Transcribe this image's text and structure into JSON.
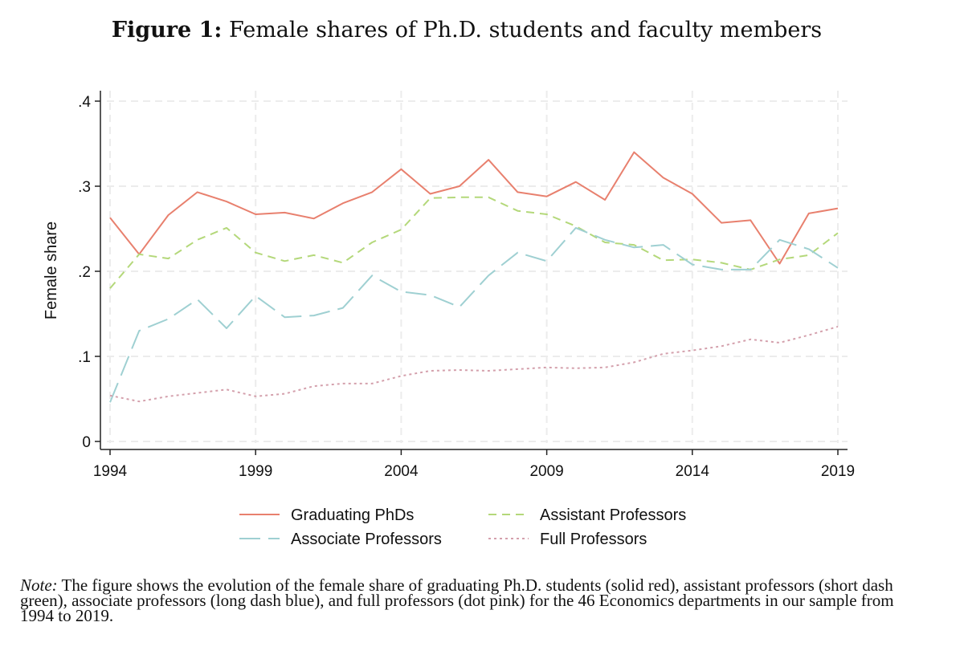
{
  "figure": {
    "title_lead": "Figure 1:",
    "title_rest": "Female shares of Ph.D. students and faculty members"
  },
  "note": {
    "label": "Note:",
    "text": "The figure shows the evolution of the female share of graduating Ph.D. students (solid red), assistant professors (short dash green), associate professors (long dash blue), and full professors (dot pink) for the 46 Economics departments in our sample from 1994 to 2019."
  },
  "chart_data": {
    "type": "line",
    "title": "",
    "xlabel": "",
    "ylabel": "Female share",
    "xlim": [
      1994,
      2019
    ],
    "ylim": [
      0,
      0.4
    ],
    "x_ticks": [
      1994,
      1999,
      2004,
      2009,
      2014,
      2019
    ],
    "y_ticks": [
      0,
      0.1,
      0.2,
      0.3,
      0.4
    ],
    "y_tick_labels": [
      "0",
      ".1",
      ".2",
      ".3",
      ".4"
    ],
    "grid": true,
    "legend_position": "bottom",
    "x": [
      1994,
      1995,
      1996,
      1997,
      1998,
      1999,
      2000,
      2001,
      2002,
      2003,
      2004,
      2005,
      2006,
      2007,
      2008,
      2009,
      2010,
      2011,
      2012,
      2013,
      2014,
      2015,
      2016,
      2017,
      2018,
      2019
    ],
    "series": [
      {
        "name": "Graduating PhDs",
        "color": "#e8806e",
        "style": "solid",
        "values": [
          0.263,
          0.22,
          0.266,
          0.293,
          0.282,
          0.267,
          0.269,
          0.262,
          0.28,
          0.293,
          0.32,
          0.291,
          0.3,
          0.331,
          0.293,
          0.288,
          0.305,
          0.284,
          0.34,
          0.31,
          0.291,
          0.257,
          0.26,
          0.209,
          0.268,
          0.274
        ]
      },
      {
        "name": "Assistant Professors",
        "color": "#b4d87a",
        "style": "short-dash",
        "values": [
          0.18,
          0.22,
          0.215,
          0.237,
          0.251,
          0.222,
          0.212,
          0.219,
          0.21,
          0.234,
          0.249,
          0.286,
          0.287,
          0.287,
          0.271,
          0.267,
          0.253,
          0.234,
          0.231,
          0.213,
          0.214,
          0.21,
          0.202,
          0.214,
          0.219,
          0.245
        ]
      },
      {
        "name": "Associate Professors",
        "color": "#9fd0d2",
        "style": "long-dash",
        "values": [
          0.046,
          0.13,
          0.144,
          0.167,
          0.133,
          0.171,
          0.146,
          0.148,
          0.157,
          0.195,
          0.176,
          0.172,
          0.158,
          0.195,
          0.222,
          0.212,
          0.251,
          0.237,
          0.228,
          0.231,
          0.208,
          0.202,
          0.202,
          0.237,
          0.226,
          0.204
        ]
      },
      {
        "name": "Full Professors",
        "color": "#d4a0ac",
        "style": "dot",
        "values": [
          0.054,
          0.047,
          0.053,
          0.057,
          0.061,
          0.053,
          0.056,
          0.065,
          0.068,
          0.068,
          0.077,
          0.083,
          0.084,
          0.083,
          0.085,
          0.087,
          0.086,
          0.087,
          0.093,
          0.103,
          0.107,
          0.112,
          0.12,
          0.116,
          0.125,
          0.135
        ]
      }
    ]
  }
}
